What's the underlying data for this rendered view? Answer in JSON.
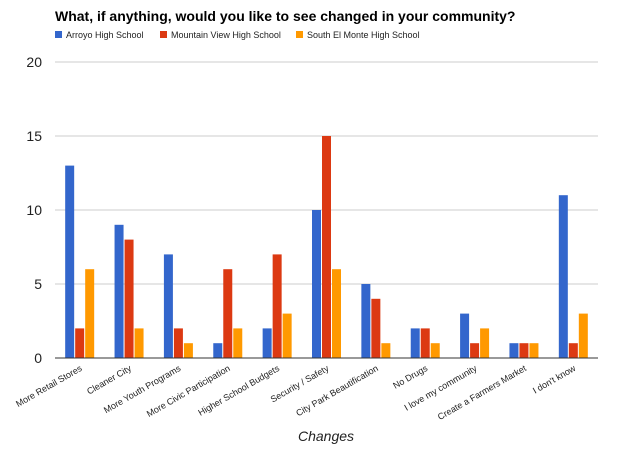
{
  "chart_data": {
    "type": "bar",
    "title": "What, if anything, would you like to see changed in your community?",
    "xlabel": "Changes",
    "ylabel": "",
    "ylim": [
      0,
      20
    ],
    "yticks": [
      0,
      5,
      10,
      15,
      20
    ],
    "grid": true,
    "legend_position": "top-left",
    "categories": [
      "More Retail Stores",
      "Cleaner City",
      "More Youth Programs",
      "More Civic Participation",
      "Higher School Budgets",
      "Security / Safety",
      "City Park Beautification",
      "No Drugs",
      "I love my community",
      "Create a Farmers Market",
      "I don't know"
    ],
    "series": [
      {
        "name": "Arroyo High School",
        "color": "#3366cc",
        "values": [
          13,
          9,
          7,
          1,
          2,
          10,
          5,
          2,
          3,
          1,
          11
        ]
      },
      {
        "name": "Mountain View High School",
        "color": "#dc3912",
        "values": [
          2,
          8,
          2,
          6,
          7,
          15,
          4,
          2,
          1,
          1,
          1
        ]
      },
      {
        "name": "South El Monte High School",
        "color": "#ff9900",
        "values": [
          6,
          2,
          1,
          2,
          3,
          6,
          1,
          1,
          2,
          1,
          3
        ]
      }
    ]
  }
}
